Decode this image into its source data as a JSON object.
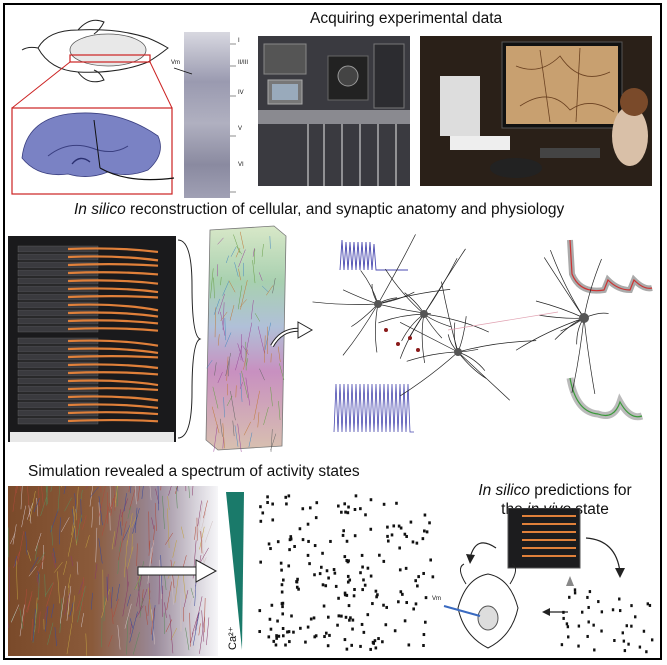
{
  "headings": {
    "acquiring": "Acquiring experimental data",
    "reconstruction_italic": "In silico",
    "reconstruction_rest": " reconstruction of cellular, and synaptic anatomy and physiology",
    "simulation": "Simulation revealed a spectrum of activity states",
    "predictions_line1_italic": "In silico",
    "predictions_line1_rest": " predictions for",
    "predictions_line2_pre": "the ",
    "predictions_line2_italic": "in vivo",
    "predictions_line2_post": " state"
  },
  "labels": {
    "vm_top": "Vm",
    "vm_bottom": "Vm",
    "layers": [
      "I",
      "II/III",
      "IV",
      "V",
      "VI"
    ],
    "calcium": "Ca²⁺"
  },
  "colors": {
    "border": "#000000",
    "rat_box": "#cc2222",
    "tissue": "#6a73b8",
    "gradient": "#1a7a6a",
    "trace": "#4a4ab0",
    "server_cable": "#e0803a"
  }
}
